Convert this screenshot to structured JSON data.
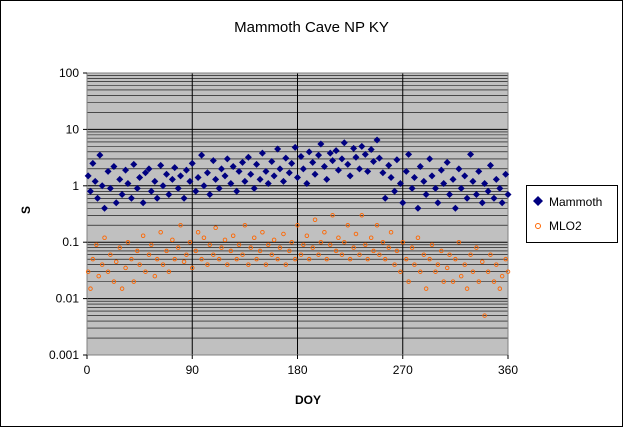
{
  "chart_data": {
    "type": "scatter",
    "title": "Mammoth Cave NP KY",
    "xlabel": "DOY",
    "ylabel": "S",
    "xlim": [
      0,
      360
    ],
    "xticks": [
      "0",
      "90",
      "180",
      "270",
      "360"
    ],
    "ylim": [
      0.001,
      100
    ],
    "yscale": "log",
    "yticks": [
      "0.001",
      "0.01",
      "0.1",
      "1",
      "10",
      "100"
    ],
    "grid": true,
    "legend": "right",
    "plot_background": "#c0c0c0",
    "series": [
      {
        "name": "Mammoth",
        "marker": "diamond",
        "color": "#000080",
        "x": [
          1,
          3,
          5,
          7,
          9,
          11,
          13,
          15,
          18,
          20,
          23,
          25,
          28,
          30,
          33,
          35,
          38,
          40,
          43,
          45,
          48,
          50,
          53,
          55,
          58,
          60,
          63,
          65,
          68,
          70,
          73,
          75,
          78,
          80,
          83,
          85,
          88,
          90,
          93,
          95,
          98,
          100,
          103,
          105,
          108,
          110,
          113,
          115,
          118,
          120,
          123,
          125,
          128,
          130,
          133,
          135,
          138,
          140,
          143,
          145,
          148,
          150,
          153,
          155,
          158,
          160,
          163,
          165,
          168,
          170,
          173,
          175,
          178,
          180,
          183,
          185,
          188,
          190,
          193,
          195,
          198,
          200,
          203,
          205,
          208,
          210,
          213,
          215,
          218,
          220,
          223,
          225,
          228,
          230,
          233,
          235,
          238,
          240,
          243,
          245,
          248,
          250,
          253,
          255,
          258,
          260,
          263,
          265,
          268,
          270,
          273,
          275,
          278,
          280,
          283,
          285,
          288,
          290,
          293,
          295,
          298,
          300,
          303,
          305,
          308,
          310,
          313,
          315,
          318,
          320,
          323,
          325,
          328,
          330,
          333,
          335,
          338,
          340,
          343,
          345,
          348,
          350,
          353,
          355,
          358,
          360
        ],
        "y": [
          1.5,
          0.8,
          2.5,
          1.2,
          0.6,
          3.5,
          1.0,
          0.4,
          1.8,
          0.9,
          2.2,
          0.5,
          1.3,
          0.7,
          1.9,
          1.1,
          0.6,
          2.4,
          0.9,
          1.4,
          0.5,
          1.7,
          2.0,
          0.8,
          1.2,
          0.6,
          2.3,
          1.0,
          1.6,
          0.7,
          1.3,
          2.1,
          0.9,
          1.5,
          0.6,
          1.9,
          1.2,
          2.5,
          0.8,
          1.4,
          3.5,
          1.0,
          1.7,
          0.7,
          2.8,
          1.3,
          0.9,
          2.0,
          1.5,
          3.0,
          1.1,
          2.2,
          0.8,
          1.8,
          2.6,
          1.2,
          3.2,
          1.6,
          0.9,
          2.4,
          1.3,
          3.8,
          1.8,
          1.1,
          2.7,
          1.5,
          4.5,
          2.0,
          1.2,
          3.1,
          1.7,
          2.5,
          4.8,
          1.4,
          3.3,
          2.0,
          1.1,
          4.0,
          2.6,
          1.6,
          3.5,
          5.5,
          2.2,
          1.3,
          3.8,
          2.8,
          4.2,
          1.9,
          3.0,
          5.8,
          2.4,
          1.5,
          4.6,
          3.2,
          2.0,
          5.0,
          3.6,
          1.8,
          4.4,
          2.7,
          6.5,
          3.1,
          1.7,
          0.6,
          2.3,
          1.4,
          0.8,
          2.9,
          1.1,
          0.5,
          1.8,
          3.6,
          0.9,
          1.4,
          0.4,
          2.2,
          1.2,
          0.7,
          3.0,
          1.5,
          0.9,
          0.5,
          1.9,
          1.1,
          2.6,
          0.7,
          1.3,
          0.4,
          2.0,
          0.9,
          1.5,
          0.6,
          3.6,
          1.2,
          0.7,
          1.8,
          0.5,
          1.1,
          0.8,
          2.3,
          0.6,
          1.3,
          0.9,
          0.5,
          1.6,
          0.7
        ]
      },
      {
        "name": "MLO2",
        "marker": "circle-open",
        "color": "#ff6600",
        "x": [
          1,
          3,
          5,
          8,
          10,
          13,
          15,
          18,
          20,
          23,
          25,
          28,
          30,
          33,
          35,
          38,
          40,
          43,
          45,
          48,
          50,
          53,
          55,
          58,
          60,
          63,
          65,
          68,
          70,
          73,
          75,
          78,
          80,
          83,
          85,
          88,
          90,
          93,
          95,
          98,
          100,
          103,
          105,
          108,
          110,
          113,
          115,
          118,
          120,
          123,
          125,
          128,
          130,
          133,
          135,
          138,
          140,
          143,
          145,
          148,
          150,
          153,
          155,
          158,
          160,
          163,
          165,
          168,
          170,
          173,
          175,
          178,
          180,
          183,
          185,
          188,
          190,
          193,
          195,
          198,
          200,
          203,
          205,
          208,
          210,
          213,
          215,
          218,
          220,
          223,
          225,
          228,
          230,
          233,
          235,
          238,
          240,
          243,
          245,
          248,
          250,
          253,
          255,
          258,
          260,
          263,
          265,
          268,
          270,
          273,
          275,
          278,
          280,
          283,
          285,
          288,
          290,
          293,
          295,
          298,
          300,
          303,
          305,
          308,
          310,
          313,
          315,
          318,
          320,
          323,
          325,
          328,
          330,
          333,
          335,
          338,
          340,
          343,
          345,
          348,
          350,
          353,
          355,
          358,
          360
        ],
        "y": [
          0.03,
          0.015,
          0.05,
          0.09,
          0.025,
          0.04,
          0.12,
          0.03,
          0.06,
          0.02,
          0.045,
          0.08,
          0.015,
          0.035,
          0.1,
          0.05,
          0.02,
          0.07,
          0.04,
          0.13,
          0.03,
          0.06,
          0.09,
          0.025,
          0.05,
          0.15,
          0.04,
          0.07,
          0.03,
          0.11,
          0.05,
          0.08,
          0.2,
          0.045,
          0.06,
          0.1,
          0.035,
          0.07,
          0.15,
          0.05,
          0.12,
          0.04,
          0.09,
          0.06,
          0.18,
          0.05,
          0.08,
          0.11,
          0.04,
          0.07,
          0.13,
          0.05,
          0.09,
          0.06,
          0.2,
          0.04,
          0.08,
          0.12,
          0.05,
          0.07,
          0.15,
          0.04,
          0.09,
          0.06,
          0.11,
          0.05,
          0.08,
          0.14,
          0.04,
          0.07,
          0.1,
          0.05,
          0.2,
          0.06,
          0.09,
          0.13,
          0.05,
          0.08,
          0.25,
          0.06,
          0.1,
          0.15,
          0.05,
          0.09,
          0.3,
          0.07,
          0.12,
          0.06,
          0.1,
          0.2,
          0.05,
          0.08,
          0.14,
          0.06,
          0.3,
          0.09,
          0.05,
          0.12,
          0.07,
          0.2,
          0.06,
          0.1,
          0.05,
          0.08,
          0.15,
          0.04,
          0.07,
          0.03,
          0.1,
          0.05,
          0.02,
          0.08,
          0.04,
          0.12,
          0.03,
          0.06,
          0.015,
          0.05,
          0.09,
          0.03,
          0.04,
          0.07,
          0.02,
          0.035,
          0.06,
          0.02,
          0.05,
          0.1,
          0.025,
          0.04,
          0.015,
          0.06,
          0.03,
          0.08,
          0.02,
          0.045,
          0.005,
          0.03,
          0.06,
          0.02,
          0.04,
          0.015,
          0.025,
          0.05,
          0.03
        ]
      }
    ]
  }
}
